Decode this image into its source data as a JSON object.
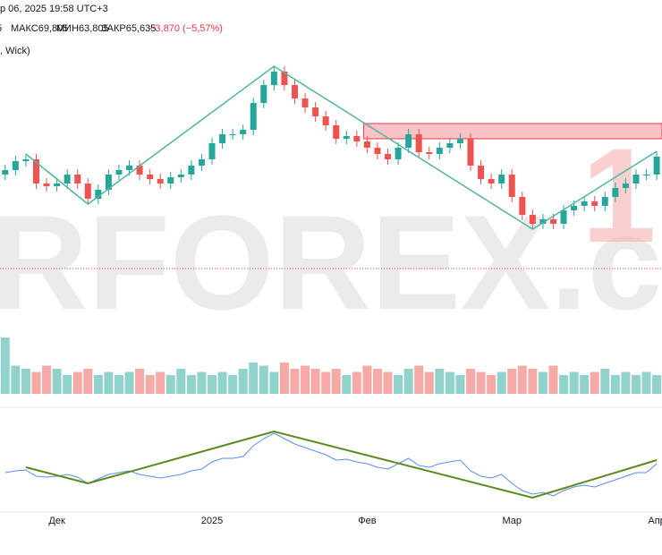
{
  "header": {
    "date": "р 06, 2025 19:58 UTC+3",
    "ohlc": [
      "5",
      "МАКС69,805",
      "МИН63,805",
      "ЗАКР65,635",
      "−3,870 (−5,57%)"
    ],
    "style": ", Wick)"
  },
  "watermark": {
    "text": "RFOREX.c",
    "accent": "1"
  },
  "chart_data": {
    "type": "candlestick",
    "categories": [
      null,
      null,
      null,
      null,
      null,
      "Дек",
      null,
      null,
      null,
      null,
      null,
      null,
      null,
      null,
      null,
      null,
      null,
      null,
      null,
      null,
      "2025",
      null,
      null,
      null,
      null,
      null,
      null,
      null,
      null,
      null,
      null,
      null,
      null,
      null,
      null,
      "Фев",
      null,
      null,
      null,
      null,
      null,
      null,
      null,
      null,
      null,
      null,
      null,
      null,
      null,
      "Мар",
      null,
      null,
      null,
      null,
      null,
      null,
      null,
      null,
      null,
      null,
      null,
      null,
      null,
      "Апр"
    ],
    "open": [
      69,
      70,
      72,
      72.4,
      67,
      66.4,
      67,
      69,
      67,
      63.6,
      65.6,
      69,
      70,
      71,
      69,
      68,
      67,
      68.4,
      69,
      71,
      72.4,
      76,
      78,
      78,
      79,
      85,
      89,
      92,
      89,
      86,
      84,
      82,
      80,
      77,
      77.6,
      76.4,
      75,
      73.6,
      72.4,
      75,
      78,
      74,
      73.6,
      75,
      76,
      77,
      71,
      68,
      67,
      69,
      64,
      60,
      58,
      59,
      58,
      61,
      62,
      63,
      62,
      64,
      66,
      67,
      69,
      69
    ],
    "high": [
      71.2,
      73.2,
      73.6,
      73.6,
      68.2,
      68.2,
      70.2,
      70.2,
      68.2,
      66.8,
      70.2,
      71.2,
      72.2,
      72.2,
      70.2,
      69.2,
      69.6,
      70.2,
      72.2,
      73.6,
      77.2,
      79.2,
      79.2,
      80.2,
      86.2,
      90.2,
      93.2,
      93.2,
      90.2,
      87.2,
      85.2,
      83.2,
      81.2,
      78.8,
      78.8,
      77.6,
      76.2,
      74.8,
      76.2,
      79.2,
      79.2,
      75.2,
      76.2,
      77.2,
      78.2,
      78.2,
      72.2,
      69.2,
      70.2,
      70.2,
      65.2,
      61.2,
      60.2,
      60.2,
      62.2,
      63.2,
      64.2,
      64.2,
      65.2,
      67.2,
      68.2,
      70.2,
      70.2,
      74.2
    ],
    "low": [
      67.8,
      68.8,
      70.8,
      65.8,
      65.2,
      65.2,
      65.8,
      65.8,
      62.4,
      62.4,
      64.4,
      67.8,
      68.8,
      67.8,
      66.8,
      65.8,
      65.8,
      67.2,
      67.8,
      69.8,
      71.2,
      74.8,
      76.8,
      76.8,
      77.8,
      83.8,
      87.8,
      87.8,
      84.8,
      82.8,
      80.8,
      78.8,
      75.8,
      75.8,
      75.2,
      73.8,
      72.4,
      71.2,
      71.2,
      73.8,
      72.8,
      72.4,
      72.4,
      73.8,
      74.8,
      69.8,
      66.8,
      65.8,
      65.8,
      62.8,
      58.8,
      56.8,
      56.8,
      56.8,
      56.8,
      59.8,
      60.8,
      60.8,
      60.8,
      62.8,
      64.8,
      65.8,
      67.8,
      67.8
    ],
    "close": [
      70,
      72,
      72.4,
      67,
      66.4,
      67,
      69,
      67,
      63.6,
      65.6,
      69,
      70,
      71,
      69,
      68,
      67,
      68.4,
      69,
      71,
      72.4,
      76,
      78,
      78,
      79,
      85,
      89,
      92,
      89,
      86,
      84,
      82,
      80,
      77,
      77.6,
      76.4,
      75,
      73.6,
      72.4,
      75,
      78,
      74,
      73.6,
      75,
      76,
      77,
      71,
      68,
      67,
      69,
      64,
      60,
      58,
      59,
      58,
      61,
      62,
      63,
      62,
      64,
      66,
      67,
      69,
      69,
      73
    ],
    "up_color": "#26a69a",
    "down_color": "#ef5350",
    "ylim": [
      40,
      100
    ],
    "zigzag": {
      "x": [
        2,
        8,
        26,
        51,
        63
      ],
      "values": [
        73.6,
        62.4,
        93.2,
        56.8,
        74.2
      ],
      "color": "#4db6a0"
    },
    "zone": {
      "start": 35,
      "low": 77,
      "high": 80.4,
      "color": "#f23645"
    },
    "hline": 48,
    "volume": {
      "values": [
        90,
        45,
        40,
        35,
        45,
        40,
        30,
        35,
        40,
        30,
        35,
        30,
        35,
        40,
        30,
        35,
        30,
        40,
        30,
        35,
        30,
        35,
        30,
        40,
        50,
        45,
        35,
        50,
        40,
        45,
        40,
        35,
        40,
        30,
        35,
        45,
        40,
        35,
        30,
        40,
        45,
        35,
        40,
        35,
        30,
        40,
        35,
        30,
        35,
        40,
        45,
        40,
        35,
        45,
        30,
        35,
        30,
        35,
        40,
        30,
        35,
        30,
        35,
        30
      ],
      "ylim": [
        0,
        100
      ]
    },
    "oscillator": {
      "values": [
        42,
        44,
        45,
        38,
        37,
        38,
        40,
        37,
        30,
        35,
        40,
        42,
        44,
        40,
        38,
        36,
        38,
        40,
        44,
        46,
        54,
        58,
        58,
        60,
        72,
        80,
        86,
        80,
        74,
        70,
        66,
        62,
        56,
        57,
        54,
        52,
        48,
        46,
        52,
        58,
        50,
        48,
        52,
        54,
        56,
        44,
        38,
        36,
        40,
        30,
        22,
        18,
        20,
        16,
        22,
        26,
        28,
        26,
        30,
        34,
        38,
        42,
        42,
        52
      ],
      "color": "#5b8def",
      "ylim": [
        0,
        100
      ],
      "zigzag": {
        "x": [
          2,
          8,
          26,
          51,
          63
        ],
        "values": [
          48,
          30,
          88,
          14,
          56
        ],
        "color": "#5a8a1e"
      }
    }
  }
}
